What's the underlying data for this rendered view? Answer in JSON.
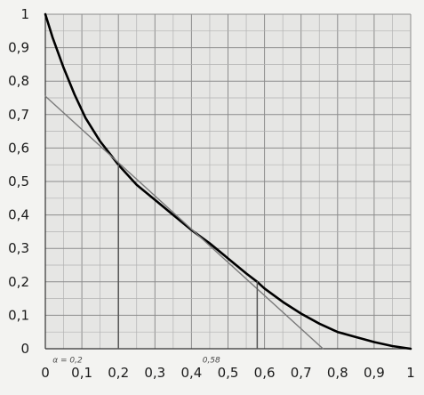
{
  "chart_data": {
    "type": "line",
    "xlim": [
      0,
      1
    ],
    "ylim": [
      0,
      1
    ],
    "grid": true,
    "grid_minor_step": 0.05,
    "x_ticks": [
      {
        "value": 0,
        "label": "0"
      },
      {
        "value": 0.1,
        "label": "0,1"
      },
      {
        "value": 0.2,
        "label": "0,2"
      },
      {
        "value": 0.3,
        "label": "0,3"
      },
      {
        "value": 0.4,
        "label": "0,4"
      },
      {
        "value": 0.5,
        "label": "0,5"
      },
      {
        "value": 0.6,
        "label": "0,6"
      },
      {
        "value": 0.7,
        "label": "0,7"
      },
      {
        "value": 0.8,
        "label": "0,8"
      },
      {
        "value": 0.9,
        "label": "0,9"
      },
      {
        "value": 1,
        "label": "1"
      }
    ],
    "y_ticks": [
      {
        "value": 0,
        "label": "0"
      },
      {
        "value": 0.1,
        "label": "0,1"
      },
      {
        "value": 0.2,
        "label": "0,2"
      },
      {
        "value": 0.3,
        "label": "0,3"
      },
      {
        "value": 0.4,
        "label": "0,4"
      },
      {
        "value": 0.5,
        "label": "0,5"
      },
      {
        "value": 0.6,
        "label": "0,6"
      },
      {
        "value": 0.7,
        "label": "0,7"
      },
      {
        "value": 0.8,
        "label": "0,8"
      },
      {
        "value": 0.9,
        "label": "0,9"
      },
      {
        "value": 1,
        "label": "1"
      }
    ],
    "series": [
      {
        "kind": "curve",
        "color": "#000000",
        "points": [
          [
            0,
            1
          ],
          [
            0.02,
            0.93
          ],
          [
            0.05,
            0.84
          ],
          [
            0.08,
            0.76
          ],
          [
            0.11,
            0.69
          ],
          [
            0.15,
            0.62
          ],
          [
            0.2,
            0.55
          ],
          [
            0.25,
            0.49
          ],
          [
            0.3,
            0.445
          ],
          [
            0.35,
            0.4
          ],
          [
            0.4,
            0.355
          ],
          [
            0.45,
            0.315
          ],
          [
            0.5,
            0.27
          ],
          [
            0.55,
            0.225
          ],
          [
            0.58,
            0.2
          ],
          [
            0.6,
            0.18
          ],
          [
            0.65,
            0.14
          ],
          [
            0.7,
            0.105
          ],
          [
            0.75,
            0.075
          ],
          [
            0.8,
            0.05
          ],
          [
            0.85,
            0.035
          ],
          [
            0.9,
            0.02
          ],
          [
            0.95,
            0.008
          ],
          [
            1,
            0
          ]
        ]
      },
      {
        "kind": "secant",
        "color": "#7a7a7a",
        "points": [
          [
            0,
            0.755
          ],
          [
            0.76,
            0
          ]
        ]
      },
      {
        "kind": "vertical",
        "color": "#555555",
        "points": [
          [
            0.2,
            0
          ],
          [
            0.2,
            0.55
          ]
        ]
      },
      {
        "kind": "vertical",
        "color": "#555555",
        "points": [
          [
            0.58,
            0
          ],
          [
            0.58,
            0.2
          ]
        ]
      }
    ],
    "annotations": [
      {
        "text": "α = 0,2",
        "x": 0.02,
        "y": -0.015
      },
      {
        "text": "0,58",
        "x": 0.43,
        "y": -0.015
      }
    ]
  }
}
